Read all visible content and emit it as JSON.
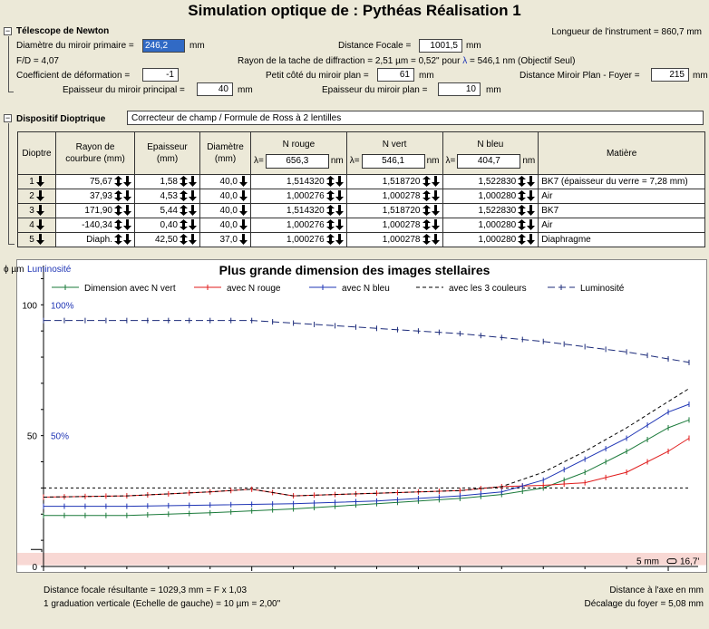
{
  "title": "Simulation optique de : Pythéas Réalisation 1",
  "longueur": "Longueur de l'instrument = 860,7 mm",
  "telescope": {
    "label": "Télescope de Newton",
    "collapse": "−",
    "diametre_label": "Diamètre du miroir primaire =",
    "diametre_value": "246,2",
    "unit_mm": "mm",
    "focale_label": "Distance Focale =",
    "focale_value": "1001,5",
    "fd": "F/D = 4,07",
    "rayon_tache_pre": "Rayon de la tache de diffraction = 2,51 µm = 0,52\" pour",
    "lambda_symbol": "λ",
    "rayon_tache_post": "= 546,1 nm (Objectif Seul)",
    "coef_label": "Coefficient de déformation =",
    "coef_value": "-1",
    "petit_cote_label": "Petit côté du miroir plan =",
    "petit_cote_value": "61",
    "dist_foyer_label": "Distance Miroir Plan - Foyer =",
    "dist_foyer_value": "215",
    "ep_principal_label": "Epaisseur du miroir principal =",
    "ep_principal_value": "40",
    "ep_plan_label": "Epaisseur du miroir plan =",
    "ep_plan_value": "10"
  },
  "dioptrique": {
    "label": "Dispositif Dioptrique",
    "collapse": "−",
    "selection": "Correcteur de champ / Formule de Ross à 2 lentilles",
    "headers": {
      "dioptre": "Dioptre",
      "rayon1": "Rayon de",
      "rayon2": "courbure (mm)",
      "ep1": "Epaisseur",
      "ep2": "(mm)",
      "diam1": "Diamètre",
      "diam2": "(mm)",
      "nrouge": "N rouge",
      "nvert": "N vert",
      "nbleu": "N bleu",
      "matiere": "Matière",
      "lambda_eq": "λ=",
      "nm": "nm",
      "lambda_rouge": "656,3",
      "lambda_vert": "546,1",
      "lambda_bleu": "404,7"
    },
    "rows": [
      {
        "n": "1",
        "rayon": "75,67",
        "ep": "1,58",
        "diam": "40,0",
        "nr": "1,514320",
        "nv": "1,518720",
        "nb": "1,522830",
        "mat": "BK7 (épaisseur du verre = 7,28 mm)"
      },
      {
        "n": "2",
        "rayon": "37,93",
        "ep": "4,53",
        "diam": "40,0",
        "nr": "1,000276",
        "nv": "1,000278",
        "nb": "1,000280",
        "mat": "Air"
      },
      {
        "n": "3",
        "rayon": "171,90",
        "ep": "5,44",
        "diam": "40,0",
        "nr": "1,514320",
        "nv": "1,518720",
        "nb": "1,522830",
        "mat": "BK7"
      },
      {
        "n": "4",
        "rayon": "-140,34",
        "ep": "0,40",
        "diam": "40,0",
        "nr": "1,000276",
        "nv": "1,000278",
        "nb": "1,000280",
        "mat": "Air"
      },
      {
        "n": "5",
        "rayon": "Diaph.",
        "ep": "42,50",
        "diam": "37,0",
        "nr": "1,000276",
        "nv": "1,000278",
        "nb": "1,000280",
        "mat": "Diaphragme"
      }
    ]
  },
  "colors": {
    "vert": "#1a7a3a",
    "rouge": "#e01b1b",
    "bleu": "#1f35b5",
    "noir": "#000000",
    "luminosite": "#1c2b7a",
    "band": "#f8d8d4"
  },
  "chart_data": {
    "type": "line",
    "title": "Plus grande dimension des images stellaires",
    "ylabel": "ϕ µm",
    "ylabel_right": "Luminosité",
    "xlabel": "Distance à l'axe en mm",
    "xlim": [
      0,
      15.5
    ],
    "ylim": [
      0,
      115
    ],
    "xticks": [
      "0",
      "5",
      "10",
      "15"
    ],
    "yticks": [
      "0",
      "50",
      "100"
    ],
    "lum_ticks": [
      "50%",
      "100%"
    ],
    "band_label": "5 mm",
    "band_value": "16,7'",
    "footer_left1": "Distance focale résultante = 1029,3 mm = F x 1,03",
    "footer_left2": "1 graduation verticale (Echelle de gauche) = 10 µm = 2,00\"",
    "footer_right": "Décalage du foyer = 5,08 mm",
    "series": [
      {
        "name": "Dimension avec N vert",
        "color": "#1a7a3a",
        "dash": "",
        "marks": true,
        "points": [
          [
            0,
            19.5
          ],
          [
            2,
            19.5
          ],
          [
            4,
            20.5
          ],
          [
            6,
            22
          ],
          [
            8,
            24
          ],
          [
            10,
            26
          ],
          [
            11,
            27.5
          ],
          [
            12,
            30
          ],
          [
            13,
            36
          ],
          [
            14,
            44
          ],
          [
            15,
            53
          ],
          [
            15.5,
            56
          ]
        ]
      },
      {
        "name": "avec N rouge",
        "color": "#e01b1b",
        "dash": "",
        "marks": true,
        "points": [
          [
            0,
            26.5
          ],
          [
            2,
            27
          ],
          [
            4,
            28.5
          ],
          [
            5,
            29.5
          ],
          [
            6,
            27
          ],
          [
            7,
            27.5
          ],
          [
            8,
            28
          ],
          [
            10,
            29
          ],
          [
            11,
            30.5
          ],
          [
            12,
            31
          ],
          [
            13,
            32
          ],
          [
            14,
            36
          ],
          [
            15,
            44
          ],
          [
            15.5,
            49
          ]
        ]
      },
      {
        "name": "avec N bleu",
        "color": "#1f35b5",
        "dash": "",
        "marks": true,
        "points": [
          [
            0,
            23
          ],
          [
            2,
            23
          ],
          [
            4,
            23.5
          ],
          [
            6,
            24
          ],
          [
            8,
            25
          ],
          [
            10,
            27
          ],
          [
            11,
            28.5
          ],
          [
            12,
            33
          ],
          [
            13,
            41
          ],
          [
            14,
            49
          ],
          [
            15,
            59
          ],
          [
            15.5,
            62
          ]
        ]
      },
      {
        "name": "avec les 3 couleurs",
        "color": "#000000",
        "dash": "4,3",
        "marks": false,
        "points": [
          [
            0,
            26.5
          ],
          [
            2,
            27
          ],
          [
            4,
            28.5
          ],
          [
            5,
            29.5
          ],
          [
            6,
            27
          ],
          [
            7,
            27.5
          ],
          [
            8,
            28
          ],
          [
            10,
            29
          ],
          [
            11,
            30.5
          ],
          [
            12,
            36
          ],
          [
            13,
            44
          ],
          [
            14,
            53
          ],
          [
            15,
            63
          ],
          [
            15.5,
            68
          ]
        ]
      },
      {
        "name": "Luminosité",
        "color": "#1c2b7a",
        "dash": "8,4",
        "marks": true,
        "points": [
          [
            0,
            94
          ],
          [
            5,
            94
          ],
          [
            6,
            93
          ],
          [
            8,
            91
          ],
          [
            10,
            89
          ],
          [
            12,
            86
          ],
          [
            14,
            82
          ],
          [
            15.5,
            78
          ]
        ]
      }
    ],
    "threshold_y": 30
  }
}
